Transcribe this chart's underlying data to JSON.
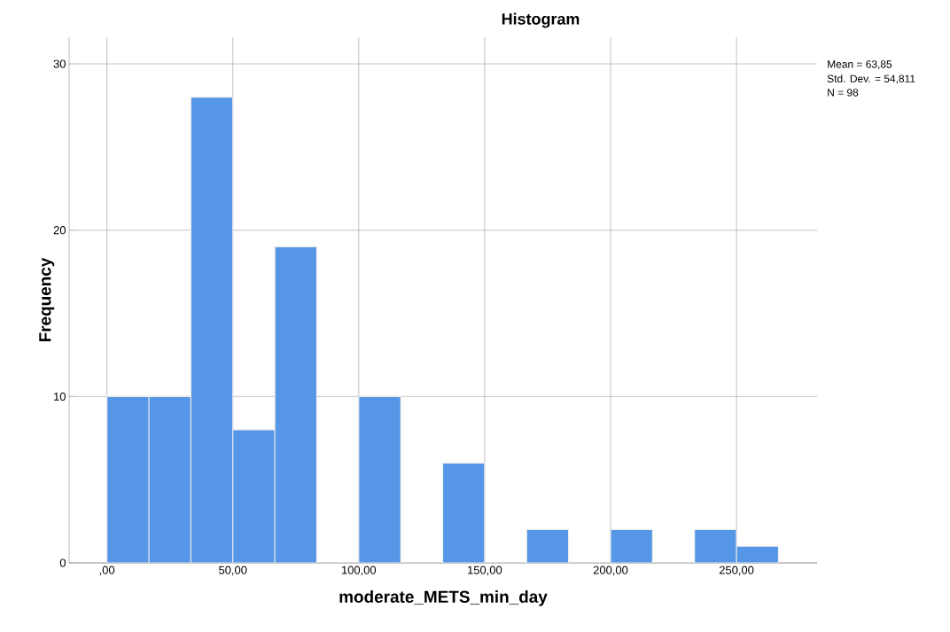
{
  "chart_data": {
    "type": "histogram",
    "title": "Histogram",
    "xlabel": "moderate_METS_min_day",
    "ylabel": "Frequency",
    "bins": [
      0,
      16.67,
      33.33,
      50,
      66.67,
      83.33,
      100,
      116.67,
      133.33,
      150,
      166.67,
      183.33,
      200,
      216.67,
      233.33,
      250,
      266.67
    ],
    "values": [
      10,
      10,
      28,
      8,
      19,
      0,
      10,
      0,
      6,
      0,
      2,
      0,
      2,
      0,
      2,
      1
    ],
    "color": "#5596e6",
    "xlim": [
      -15,
      282
    ],
    "ylim": [
      0,
      31.6
    ],
    "xticks": [
      {
        "value": 0,
        "label": ",00"
      },
      {
        "value": 50,
        "label": "50,00"
      },
      {
        "value": 100,
        "label": "100,00"
      },
      {
        "value": 150,
        "label": "150,00"
      },
      {
        "value": 200,
        "label": "200,00"
      },
      {
        "value": 250,
        "label": "250,00"
      }
    ],
    "yticks": [
      0,
      10,
      20,
      30
    ],
    "grid": true,
    "annotations": [
      "Mean = 63,85",
      "Std. Dev. = 54,811",
      "N = 98"
    ]
  }
}
